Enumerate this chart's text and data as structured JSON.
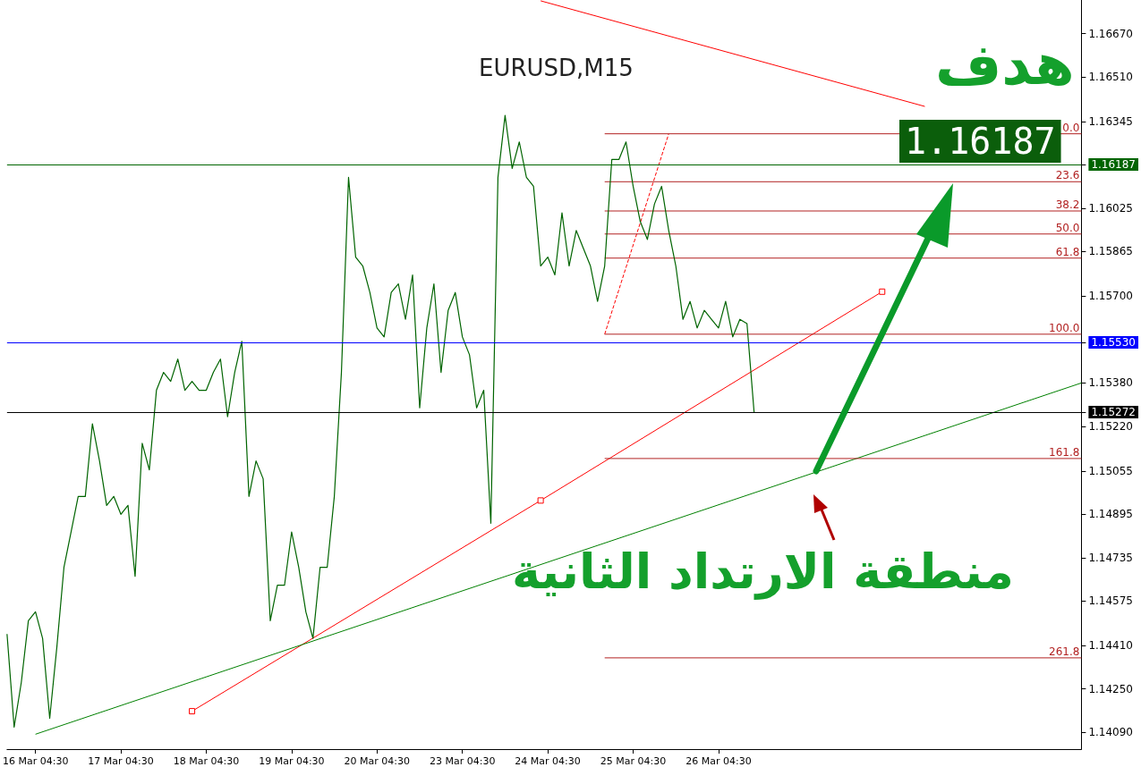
{
  "chart_data": {
    "type": "line",
    "title": "EURUSD,M15",
    "categories": [
      null,
      null,
      null,
      null,
      "16 Mar 04:30",
      null,
      null,
      null,
      null,
      null,
      null,
      null,
      null,
      null,
      null,
      null,
      "17 Mar 04:30",
      null,
      null,
      null,
      null,
      null,
      null,
      null,
      null,
      null,
      null,
      null,
      "18 Mar 04:30",
      null,
      null,
      null,
      null,
      null,
      null,
      null,
      null,
      null,
      null,
      null,
      "19 Mar 04:30",
      null,
      null,
      null,
      null,
      null,
      null,
      null,
      null,
      null,
      null,
      null,
      "20 Mar 04:30",
      null,
      null,
      null,
      null,
      null,
      null,
      null,
      null,
      null,
      null,
      null,
      "23 Mar 04:30",
      null,
      null,
      null,
      null,
      null,
      null,
      null,
      null,
      null,
      null,
      null,
      "24 Mar 04:30",
      null,
      null,
      null,
      null,
      null,
      null,
      null,
      null,
      null,
      null,
      null,
      "25 Mar 04:30",
      null,
      null,
      null,
      null,
      null,
      null,
      null,
      null,
      null,
      null,
      null,
      "26 Mar 04:30",
      null,
      null,
      null,
      null,
      null,
      null,
      null,
      null,
      null,
      null,
      null,
      null,
      null,
      null,
      null,
      null,
      null,
      null,
      null,
      null,
      null,
      null,
      null,
      null,
      null,
      null,
      null,
      null,
      null,
      null,
      null,
      null,
      null,
      null,
      null,
      null,
      null,
      null,
      null,
      null,
      null,
      null,
      null,
      null,
      null,
      null,
      null,
      null,
      null,
      null,
      null
    ],
    "ylim": [
      1.14028,
      1.16794
    ],
    "yticks": [
      {
        "value": 1.1667,
        "label": "1.16670"
      },
      {
        "value": 1.1651,
        "label": "1.16510"
      },
      {
        "value": 1.16345,
        "label": "1.16345"
      },
      {
        "value": 1.16187,
        "label": "1.16187"
      },
      {
        "value": 1.16025,
        "label": "1.16025"
      },
      {
        "value": 1.15865,
        "label": "1.15865"
      },
      {
        "value": 1.157,
        "label": "1.15700"
      },
      {
        "value": 1.1553,
        "label": "1.15530"
      },
      {
        "value": 1.1538,
        "label": "1.15380"
      },
      {
        "value": 1.15272,
        "label": "1.15272"
      },
      {
        "value": 1.1522,
        "label": "1.15220"
      },
      {
        "value": 1.15055,
        "label": "1.15055"
      },
      {
        "value": 1.14895,
        "label": "1.14895"
      },
      {
        "value": 1.14735,
        "label": "1.14735"
      },
      {
        "value": 1.14575,
        "label": "1.14575"
      },
      {
        "value": 1.1441,
        "label": "1.14410"
      },
      {
        "value": 1.1425,
        "label": "1.14250"
      },
      {
        "value": 1.1409,
        "label": "1.14090"
      }
    ],
    "marker": "none",
    "line_style": "solid",
    "series": [
      {
        "color": "#006400",
        "values": [
          1.14453,
          1.14109,
          1.14273,
          1.14502,
          1.14535,
          1.14437,
          1.14142,
          1.14404,
          1.14699,
          1.1483,
          1.14961,
          1.14961,
          1.15229,
          1.15092,
          1.14928,
          1.14961,
          1.14895,
          1.14928,
          1.14666,
          1.15157,
          1.15059,
          1.15353,
          1.15419,
          1.15386,
          1.15468,
          1.15353,
          1.15386,
          1.15353,
          1.15353,
          1.15419,
          1.15468,
          1.15255,
          1.15419,
          1.15534,
          1.14961,
          1.15092,
          1.15026,
          1.14502,
          1.14633,
          1.14633,
          1.1483,
          1.14699,
          1.14535,
          1.14437,
          1.14699,
          1.14699,
          1.14961,
          1.15419,
          1.16139,
          1.15845,
          1.15812,
          1.15714,
          1.15583,
          1.1555,
          1.15714,
          1.15746,
          1.15615,
          1.15779,
          1.15288,
          1.15583,
          1.15746,
          1.15419,
          1.15648,
          1.15714,
          1.1555,
          1.15484,
          1.15288,
          1.15353,
          1.14862,
          1.16139,
          1.16368,
          1.16172,
          1.1627,
          1.16139,
          1.16106,
          1.15812,
          1.15845,
          1.15779,
          1.16008,
          1.15812,
          1.15943,
          1.15877,
          1.15812,
          1.15681,
          1.15812,
          1.16205,
          1.16205,
          1.1627,
          1.16106,
          1.15976,
          1.1591,
          1.16041,
          1.16106,
          1.15943,
          1.15812,
          1.15615,
          1.15681,
          1.15583,
          1.15648,
          1.15615,
          1.15583,
          1.15681,
          1.1555,
          1.15615,
          1.15599,
          1.15272,
          null,
          null,
          null,
          null,
          null,
          null,
          null,
          null,
          null,
          null,
          null,
          null,
          null,
          null,
          null,
          null,
          null,
          null,
          null,
          null,
          null,
          null,
          null,
          null,
          null,
          null,
          null,
          null,
          null,
          null,
          null,
          null,
          null,
          null,
          null,
          null,
          null,
          null,
          null,
          null,
          null,
          null,
          null,
          null,
          null,
          null
        ]
      },
      {
        "color": "#ff0000",
        "marker": "square",
        "values": [
          null,
          null,
          null,
          null,
          null,
          null,
          null,
          null,
          null,
          null,
          null,
          null,
          null,
          null,
          null,
          null,
          null,
          null,
          null,
          null,
          null,
          null,
          null,
          null,
          null,
          null,
          1.14168,
          null,
          null,
          null,
          null,
          null,
          null,
          null,
          null,
          null,
          null,
          null,
          null,
          null,
          null,
          null,
          null,
          null,
          null,
          null,
          null,
          null,
          null,
          null,
          null,
          null,
          null,
          null,
          null,
          null,
          null,
          null,
          null,
          null,
          null,
          null,
          null,
          null,
          null,
          null,
          null,
          null,
          null,
          null,
          null,
          null,
          null,
          null,
          null,
          1.14946,
          null,
          null,
          null,
          null,
          null,
          null,
          null,
          null,
          null,
          null,
          null,
          null,
          null,
          null,
          null,
          null,
          null,
          null,
          null,
          null,
          null,
          null,
          null,
          null,
          null,
          null,
          null,
          null,
          null,
          null,
          null,
          null,
          null,
          null,
          null,
          null,
          null,
          null,
          null,
          null,
          null,
          null,
          null,
          null,
          null,
          null,
          null,
          1.15717,
          null,
          null,
          null,
          null,
          null,
          null,
          null,
          null,
          null,
          null,
          null,
          null,
          null,
          null,
          null,
          null,
          null,
          null,
          null,
          null,
          null,
          null,
          null,
          null,
          null,
          null,
          null,
          null
        ]
      },
      {
        "color": "#008000",
        "values": [
          null,
          null,
          null,
          null,
          1.14083,
          null,
          null,
          null,
          null,
          null,
          null,
          null,
          null,
          null,
          null,
          null,
          null,
          null,
          null,
          null,
          null,
          null,
          null,
          null,
          null,
          null,
          null,
          null,
          null,
          null,
          null,
          null,
          null,
          null,
          null,
          null,
          null,
          null,
          null,
          null,
          null,
          null,
          null,
          null,
          null,
          null,
          null,
          null,
          null,
          null,
          null,
          null,
          null,
          null,
          null,
          null,
          null,
          null,
          null,
          null,
          null,
          null,
          null,
          null,
          null,
          null,
          null,
          null,
          null,
          null,
          null,
          null,
          null,
          null,
          null,
          null,
          null,
          null,
          null,
          null,
          null,
          null,
          null,
          null,
          null,
          null,
          null,
          null,
          null,
          null,
          null,
          null,
          null,
          null,
          null,
          null,
          null,
          null,
          null,
          null,
          null,
          null,
          null,
          null,
          null,
          null,
          null,
          null,
          null,
          null,
          null,
          null,
          null,
          null,
          null,
          null,
          null,
          null,
          null,
          null,
          null,
          null,
          null,
          null,
          null,
          null,
          null,
          null,
          null,
          null,
          null,
          null,
          null,
          null,
          null,
          null,
          null,
          null,
          null,
          null,
          null,
          null,
          null,
          null,
          null,
          null,
          null,
          null,
          null,
          null,
          null,
          1.1538
        ]
      },
      {
        "color": "#ff0000",
        "values": [
          null,
          null,
          null,
          null,
          null,
          null,
          null,
          null,
          null,
          null,
          null,
          null,
          null,
          null,
          null,
          null,
          null,
          null,
          null,
          null,
          null,
          null,
          null,
          null,
          null,
          null,
          null,
          null,
          null,
          null,
          null,
          null,
          null,
          null,
          null,
          null,
          null,
          null,
          null,
          null,
          null,
          null,
          null,
          null,
          null,
          null,
          null,
          null,
          null,
          null,
          null,
          null,
          null,
          null,
          null,
          null,
          null,
          null,
          null,
          null,
          null,
          null,
          null,
          null,
          null,
          null,
          null,
          null,
          null,
          null,
          null,
          null,
          null,
          null,
          null,
          1.16791,
          null,
          null,
          null,
          null,
          null,
          null,
          null,
          null,
          null,
          null,
          null,
          null,
          null,
          null,
          null,
          null,
          null,
          null,
          null,
          null,
          null,
          null,
          null,
          null,
          null,
          null,
          null,
          null,
          null,
          null,
          null,
          null,
          null,
          null,
          null,
          null,
          null,
          null,
          null,
          null,
          null,
          null,
          null,
          null,
          null,
          null,
          null,
          null,
          null,
          null,
          null,
          null,
          null,
          1.16401,
          null,
          null,
          null,
          null,
          null,
          null,
          null,
          null,
          null,
          null,
          null,
          null,
          null,
          null,
          null,
          null,
          null,
          null,
          null,
          null,
          null,
          null
        ]
      },
      {
        "color": "#ff0000",
        "line_style": "dashed",
        "values": [
          null,
          null,
          null,
          null,
          null,
          null,
          null,
          null,
          null,
          null,
          null,
          null,
          null,
          null,
          null,
          null,
          null,
          null,
          null,
          null,
          null,
          null,
          null,
          null,
          null,
          null,
          null,
          null,
          null,
          null,
          null,
          null,
          null,
          null,
          null,
          null,
          null,
          null,
          null,
          null,
          null,
          null,
          null,
          null,
          null,
          null,
          null,
          null,
          null,
          null,
          null,
          null,
          null,
          null,
          null,
          null,
          null,
          null,
          null,
          null,
          null,
          null,
          null,
          null,
          null,
          null,
          null,
          null,
          null,
          null,
          null,
          null,
          null,
          null,
          null,
          null,
          null,
          null,
          null,
          null,
          null,
          null,
          null,
          null,
          1.1556,
          null,
          null,
          null,
          null,
          null,
          null,
          null,
          null,
          1.163,
          null,
          null,
          null,
          null,
          null,
          null,
          null,
          null,
          null,
          null,
          null,
          null,
          null,
          null,
          null,
          null,
          null,
          null,
          null,
          null,
          null,
          null,
          null,
          null,
          null,
          null,
          null,
          null,
          null,
          null,
          null,
          null,
          null,
          null,
          null,
          null,
          null,
          null,
          null,
          null,
          null,
          null,
          null,
          null,
          null,
          null,
          null,
          null,
          null,
          null,
          null,
          null,
          null,
          null,
          null,
          null,
          null,
          null
        ]
      },
      {
        "color": "#b22222",
        "values": [
          null,
          null,
          null,
          null,
          null,
          null,
          null,
          null,
          null,
          null,
          null,
          null,
          null,
          null,
          null,
          null,
          null,
          null,
          null,
          null,
          null,
          null,
          null,
          null,
          null,
          null,
          null,
          null,
          null,
          null,
          null,
          null,
          null,
          null,
          null,
          null,
          null,
          null,
          null,
          null,
          null,
          null,
          null,
          null,
          null,
          null,
          null,
          null,
          null,
          null,
          null,
          null,
          null,
          null,
          null,
          null,
          null,
          null,
          null,
          null,
          null,
          null,
          null,
          null,
          null,
          null,
          null,
          null,
          null,
          null,
          null,
          null,
          null,
          null,
          null,
          null,
          null,
          null,
          null,
          null,
          null,
          null,
          null,
          null,
          1.163,
          null,
          null,
          null,
          null,
          null,
          null,
          null,
          null,
          null,
          null,
          null,
          null,
          null,
          null,
          null,
          null,
          null,
          null,
          null,
          null,
          null,
          null,
          null,
          null,
          null,
          null,
          null,
          null,
          null,
          null,
          null,
          null,
          null,
          null,
          null,
          null,
          null,
          null,
          null,
          null,
          null,
          null,
          null,
          null,
          null,
          null,
          null,
          null,
          null,
          null,
          null,
          null,
          null,
          null,
          null,
          null,
          null,
          null,
          null,
          null,
          null,
          null,
          null,
          null,
          null,
          null,
          1.163
        ]
      },
      {
        "color": "#b22222",
        "values": [
          null,
          null,
          null,
          null,
          null,
          null,
          null,
          null,
          null,
          null,
          null,
          null,
          null,
          null,
          null,
          null,
          null,
          null,
          null,
          null,
          null,
          null,
          null,
          null,
          null,
          null,
          null,
          null,
          null,
          null,
          null,
          null,
          null,
          null,
          null,
          null,
          null,
          null,
          null,
          null,
          null,
          null,
          null,
          null,
          null,
          null,
          null,
          null,
          null,
          null,
          null,
          null,
          null,
          null,
          null,
          null,
          null,
          null,
          null,
          null,
          null,
          null,
          null,
          null,
          null,
          null,
          null,
          null,
          null,
          null,
          null,
          null,
          null,
          null,
          null,
          null,
          null,
          null,
          null,
          null,
          null,
          null,
          null,
          null,
          1.16123,
          null,
          null,
          null,
          null,
          null,
          null,
          null,
          null,
          null,
          null,
          null,
          null,
          null,
          null,
          null,
          null,
          null,
          null,
          null,
          null,
          null,
          null,
          null,
          null,
          null,
          null,
          null,
          null,
          null,
          null,
          null,
          null,
          null,
          null,
          null,
          null,
          null,
          null,
          null,
          null,
          null,
          null,
          null,
          null,
          null,
          null,
          null,
          null,
          null,
          null,
          null,
          null,
          null,
          null,
          null,
          null,
          null,
          null,
          null,
          null,
          null,
          null,
          null,
          null,
          null,
          null,
          1.16123
        ]
      },
      {
        "color": "#b22222",
        "values": [
          null,
          null,
          null,
          null,
          null,
          null,
          null,
          null,
          null,
          null,
          null,
          null,
          null,
          null,
          null,
          null,
          null,
          null,
          null,
          null,
          null,
          null,
          null,
          null,
          null,
          null,
          null,
          null,
          null,
          null,
          null,
          null,
          null,
          null,
          null,
          null,
          null,
          null,
          null,
          null,
          null,
          null,
          null,
          null,
          null,
          null,
          null,
          null,
          null,
          null,
          null,
          null,
          null,
          null,
          null,
          null,
          null,
          null,
          null,
          null,
          null,
          null,
          null,
          null,
          null,
          null,
          null,
          null,
          null,
          null,
          null,
          null,
          null,
          null,
          null,
          null,
          null,
          null,
          null,
          null,
          null,
          null,
          null,
          null,
          1.16015,
          null,
          null,
          null,
          null,
          null,
          null,
          null,
          null,
          null,
          null,
          null,
          null,
          null,
          null,
          null,
          null,
          null,
          null,
          null,
          null,
          null,
          null,
          null,
          null,
          null,
          null,
          null,
          null,
          null,
          null,
          null,
          null,
          null,
          null,
          null,
          null,
          null,
          null,
          null,
          null,
          null,
          null,
          null,
          null,
          null,
          null,
          null,
          null,
          null,
          null,
          null,
          null,
          null,
          null,
          null,
          null,
          null,
          null,
          null,
          null,
          null,
          null,
          null,
          null,
          null,
          null,
          1.16015
        ]
      },
      {
        "color": "#b22222",
        "values": [
          null,
          null,
          null,
          null,
          null,
          null,
          null,
          null,
          null,
          null,
          null,
          null,
          null,
          null,
          null,
          null,
          null,
          null,
          null,
          null,
          null,
          null,
          null,
          null,
          null,
          null,
          null,
          null,
          null,
          null,
          null,
          null,
          null,
          null,
          null,
          null,
          null,
          null,
          null,
          null,
          null,
          null,
          null,
          null,
          null,
          null,
          null,
          null,
          null,
          null,
          null,
          null,
          null,
          null,
          null,
          null,
          null,
          null,
          null,
          null,
          null,
          null,
          null,
          null,
          null,
          null,
          null,
          null,
          null,
          null,
          null,
          null,
          null,
          null,
          null,
          null,
          null,
          null,
          null,
          null,
          null,
          null,
          null,
          null,
          1.1593,
          null,
          null,
          null,
          null,
          null,
          null,
          null,
          null,
          null,
          null,
          null,
          null,
          null,
          null,
          null,
          null,
          null,
          null,
          null,
          null,
          null,
          null,
          null,
          null,
          null,
          null,
          null,
          null,
          null,
          null,
          null,
          null,
          null,
          null,
          null,
          null,
          null,
          null,
          null,
          null,
          null,
          null,
          null,
          null,
          null,
          null,
          null,
          null,
          null,
          null,
          null,
          null,
          null,
          null,
          null,
          null,
          null,
          null,
          null,
          null,
          null,
          null,
          null,
          null,
          null,
          null,
          1.1593
        ]
      },
      {
        "color": "#b22222",
        "values": [
          null,
          null,
          null,
          null,
          null,
          null,
          null,
          null,
          null,
          null,
          null,
          null,
          null,
          null,
          null,
          null,
          null,
          null,
          null,
          null,
          null,
          null,
          null,
          null,
          null,
          null,
          null,
          null,
          null,
          null,
          null,
          null,
          null,
          null,
          null,
          null,
          null,
          null,
          null,
          null,
          null,
          null,
          null,
          null,
          null,
          null,
          null,
          null,
          null,
          null,
          null,
          null,
          null,
          null,
          null,
          null,
          null,
          null,
          null,
          null,
          null,
          null,
          null,
          null,
          null,
          null,
          null,
          null,
          null,
          null,
          null,
          null,
          null,
          null,
          null,
          null,
          null,
          null,
          null,
          null,
          null,
          null,
          null,
          null,
          1.15841,
          null,
          null,
          null,
          null,
          null,
          null,
          null,
          null,
          null,
          null,
          null,
          null,
          null,
          null,
          null,
          null,
          null,
          null,
          null,
          null,
          null,
          null,
          null,
          null,
          null,
          null,
          null,
          null,
          null,
          null,
          null,
          null,
          null,
          null,
          null,
          null,
          null,
          null,
          null,
          null,
          null,
          null,
          null,
          null,
          null,
          null,
          null,
          null,
          null,
          null,
          null,
          null,
          null,
          null,
          null,
          null,
          null,
          null,
          null,
          null,
          null,
          null,
          null,
          null,
          null,
          null,
          1.15841
        ]
      },
      {
        "color": "#b22222",
        "values": [
          null,
          null,
          null,
          null,
          null,
          null,
          null,
          null,
          null,
          null,
          null,
          null,
          null,
          null,
          null,
          null,
          null,
          null,
          null,
          null,
          null,
          null,
          null,
          null,
          null,
          null,
          null,
          null,
          null,
          null,
          null,
          null,
          null,
          null,
          null,
          null,
          null,
          null,
          null,
          null,
          null,
          null,
          null,
          null,
          null,
          null,
          null,
          null,
          null,
          null,
          null,
          null,
          null,
          null,
          null,
          null,
          null,
          null,
          null,
          null,
          null,
          null,
          null,
          null,
          null,
          null,
          null,
          null,
          null,
          null,
          null,
          null,
          null,
          null,
          null,
          null,
          null,
          null,
          null,
          null,
          null,
          null,
          null,
          null,
          1.1556,
          null,
          null,
          null,
          null,
          null,
          null,
          null,
          null,
          null,
          null,
          null,
          null,
          null,
          null,
          null,
          null,
          null,
          null,
          null,
          null,
          null,
          null,
          null,
          null,
          null,
          null,
          null,
          null,
          null,
          null,
          null,
          null,
          null,
          null,
          null,
          null,
          null,
          null,
          null,
          null,
          null,
          null,
          null,
          null,
          null,
          null,
          null,
          null,
          null,
          null,
          null,
          null,
          null,
          null,
          null,
          null,
          null,
          null,
          null,
          null,
          null,
          null,
          null,
          null,
          null,
          null,
          1.1556
        ]
      },
      {
        "color": "#b22222",
        "values": [
          null,
          null,
          null,
          null,
          null,
          null,
          null,
          null,
          null,
          null,
          null,
          null,
          null,
          null,
          null,
          null,
          null,
          null,
          null,
          null,
          null,
          null,
          null,
          null,
          null,
          null,
          null,
          null,
          null,
          null,
          null,
          null,
          null,
          null,
          null,
          null,
          null,
          null,
          null,
          null,
          null,
          null,
          null,
          null,
          null,
          null,
          null,
          null,
          null,
          null,
          null,
          null,
          null,
          null,
          null,
          null,
          null,
          null,
          null,
          null,
          null,
          null,
          null,
          null,
          null,
          null,
          null,
          null,
          null,
          null,
          null,
          null,
          null,
          null,
          null,
          null,
          null,
          null,
          null,
          null,
          null,
          null,
          null,
          null,
          1.15101,
          null,
          null,
          null,
          null,
          null,
          null,
          null,
          null,
          null,
          null,
          null,
          null,
          null,
          null,
          null,
          null,
          null,
          null,
          null,
          null,
          null,
          null,
          null,
          null,
          null,
          null,
          null,
          null,
          null,
          null,
          null,
          null,
          null,
          null,
          null,
          null,
          null,
          null,
          null,
          null,
          null,
          null,
          null,
          null,
          null,
          null,
          null,
          null,
          null,
          null,
          null,
          null,
          null,
          null,
          null,
          null,
          null,
          null,
          null,
          null,
          null,
          null,
          null,
          null,
          null,
          null,
          1.15101
        ]
      },
      {
        "color": "#b22222",
        "values": [
          null,
          null,
          null,
          null,
          null,
          null,
          null,
          null,
          null,
          null,
          null,
          null,
          null,
          null,
          null,
          null,
          null,
          null,
          null,
          null,
          null,
          null,
          null,
          null,
          null,
          null,
          null,
          null,
          null,
          null,
          null,
          null,
          null,
          null,
          null,
          null,
          null,
          null,
          null,
          null,
          null,
          null,
          null,
          null,
          null,
          null,
          null,
          null,
          null,
          null,
          null,
          null,
          null,
          null,
          null,
          null,
          null,
          null,
          null,
          null,
          null,
          null,
          null,
          null,
          null,
          null,
          null,
          null,
          null,
          null,
          null,
          null,
          null,
          null,
          null,
          null,
          null,
          null,
          null,
          null,
          null,
          null,
          null,
          null,
          1.14365,
          null,
          null,
          null,
          null,
          null,
          null,
          null,
          null,
          null,
          null,
          null,
          null,
          null,
          null,
          null,
          null,
          null,
          null,
          null,
          null,
          null,
          null,
          null,
          null,
          null,
          null,
          null,
          null,
          null,
          null,
          null,
          null,
          null,
          null,
          null,
          null,
          null,
          null,
          null,
          null,
          null,
          null,
          null,
          null,
          null,
          null,
          null,
          null,
          null,
          null,
          null,
          null,
          null,
          null,
          null,
          null,
          null,
          null,
          null,
          null,
          null,
          null,
          null,
          null,
          null,
          null,
          1.14365
        ]
      }
    ],
    "ref_lines": [
      {
        "axis": "y",
        "value": 1.16187,
        "color": "#006400"
      },
      {
        "axis": "y",
        "value": 1.1553,
        "color": "#0000ff"
      },
      {
        "axis": "y",
        "value": 1.15272,
        "color": "#000000"
      }
    ],
    "annotations": [
      "هدف",
      "1.16187",
      "منطقة الارتداد الثانية",
      {
        "text": "0.0",
        "y": 1.163
      },
      {
        "text": "23.6",
        "y": 1.16123
      },
      {
        "text": "38.2",
        "y": 1.16015
      },
      {
        "text": "50.0",
        "y": 1.1593
      },
      {
        "text": "61.8",
        "y": 1.15841
      },
      {
        "text": "100.0",
        "y": 1.1556
      },
      {
        "text": "161.8",
        "y": 1.15101
      },
      {
        "text": "261.8",
        "y": 1.14365
      }
    ]
  }
}
